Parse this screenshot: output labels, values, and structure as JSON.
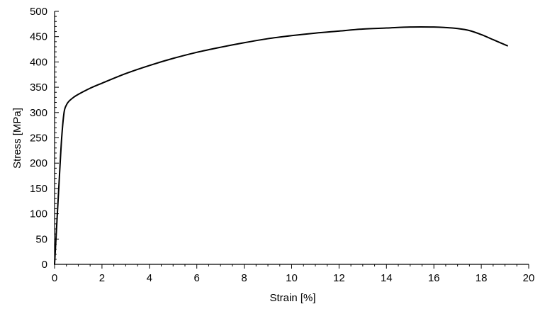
{
  "chart_data": {
    "type": "line",
    "title": "",
    "xlabel": "Strain [%]",
    "ylabel": "Stress [MPa]",
    "xlim": [
      0,
      20
    ],
    "ylim": [
      0,
      500
    ],
    "x_ticks": [
      "0",
      "2",
      "4",
      "6",
      "8",
      "10",
      "12",
      "14",
      "16",
      "18",
      "20"
    ],
    "y_ticks": [
      "0",
      "50",
      "100",
      "150",
      "200",
      "250",
      "300",
      "350",
      "400",
      "450",
      "500"
    ],
    "grid": false,
    "legend": "none",
    "line_color": "#000000",
    "series": [
      {
        "x": [
          0,
          0.1,
          0.2,
          0.3,
          0.4,
          0.5,
          0.6,
          0.8,
          1.0,
          1.5,
          2,
          3,
          4,
          5,
          6,
          7,
          8,
          9,
          10,
          11,
          12,
          13,
          14,
          15,
          16,
          16.5,
          17,
          17.5,
          18,
          18.5,
          19.1
        ],
        "y": [
          0,
          85,
          170,
          250,
          300,
          315,
          322,
          330,
          336,
          348,
          358,
          377,
          393,
          407,
          419,
          429,
          438,
          446,
          452,
          457,
          461,
          465,
          467,
          469,
          469,
          468,
          466,
          462,
          454,
          444,
          432
        ]
      }
    ]
  }
}
